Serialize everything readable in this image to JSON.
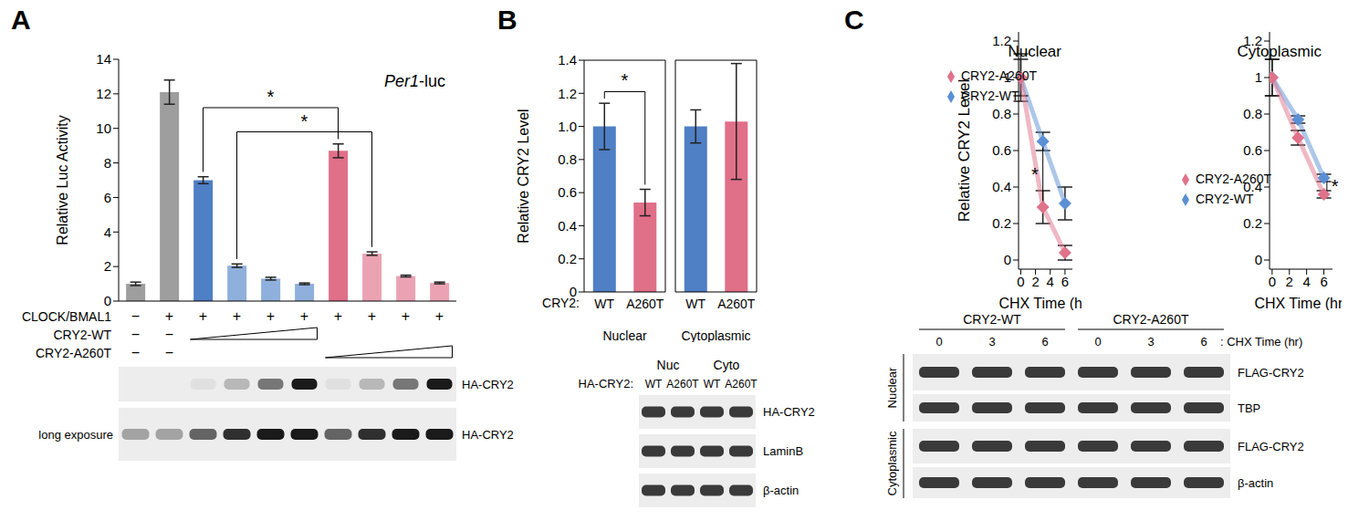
{
  "chart_data": [
    {
      "panel": "A",
      "type": "bar",
      "title": "Per1-luc",
      "ylabel": "Relative Luc Activity",
      "categories": [
        null,
        null,
        null,
        null,
        null,
        null,
        null,
        null,
        null,
        null
      ],
      "values": [
        1.0,
        12.1,
        7.0,
        2.05,
        1.3,
        1.0,
        8.7,
        2.75,
        1.45,
        1.05
      ],
      "errors": [
        0.1,
        0.7,
        0.2,
        0.1,
        0.08,
        0.05,
        0.4,
        0.1,
        0.05,
        0.05
      ],
      "colors": [
        "#9e9e9e",
        "#9e9e9e",
        "#4f7fc4",
        "#8fb0dc",
        "#8fb0dc",
        "#8fb0dc",
        "#e06f88",
        "#eba3b3",
        "#eba3b3",
        "#eba3b3"
      ],
      "ylim": [
        0,
        14
      ],
      "yticks": [
        0,
        2,
        4,
        6,
        8,
        10,
        12,
        14
      ],
      "significance": [
        {
          "from": 2,
          "to": 6,
          "label": "*"
        },
        {
          "from": 3,
          "to": 7,
          "label": "*"
        }
      ],
      "treatments": [
        {
          "label": "CLOCK/BMAL1",
          "signs": [
            "−",
            "+",
            "+",
            "+",
            "+",
            "+",
            "+",
            "+",
            "+",
            "+"
          ]
        },
        {
          "label": "CRY2-WT",
          "signs": [
            "−",
            "−"
          ],
          "ramp": [
            2,
            5
          ]
        },
        {
          "label": "CRY2-A260T",
          "signs": [
            "−",
            "−"
          ],
          "ramp": [
            6,
            9
          ]
        }
      ],
      "blots": [
        {
          "label": "HA-CRY2"
        },
        {
          "label": "HA-CRY2",
          "side_label": "long exposure"
        }
      ]
    },
    {
      "panel": "B",
      "type": "bar",
      "xlabel": "Nuclear",
      "ylabel": "Relative CRY2 Level",
      "category_label": "CRY2:",
      "categories": [
        "WT",
        "A260T"
      ],
      "values": [
        1.0,
        0.54
      ],
      "errors": [
        0.14,
        0.08
      ],
      "colors": [
        "#4f7fc4",
        "#e06f88"
      ],
      "ylim": [
        0,
        1.4
      ],
      "yticks": [
        0,
        0.2,
        0.4,
        0.6,
        0.8,
        {
          "value": 1,
          "label": "1.0"
        },
        1.2,
        1.4
      ],
      "significance": [
        {
          "from": 0,
          "to": 1,
          "label": "*"
        }
      ],
      "blot": {
        "groups": [
          "Nuc",
          "Cyto"
        ],
        "lane_prefix": "HA-CRY2:",
        "lanes": [
          "WT",
          "A260T",
          "WT",
          "A260T"
        ],
        "rows": [
          "HA-CRY2",
          "LaminB",
          "β-actin"
        ]
      }
    },
    {
      "type": "bar",
      "xlabel": "Cytoplasmic",
      "categories": [
        "WT",
        "A260T"
      ],
      "values": [
        1.0,
        1.03
      ],
      "errors": [
        0.1,
        0.35
      ],
      "colors": [
        "#4f7fc4",
        "#e06f88"
      ],
      "ylim": [
        0,
        1.4
      ],
      "yticks": [
        0,
        0.2,
        0.4,
        0.6,
        0.8,
        {
          "value": 1,
          "label": "1.0"
        },
        1.2,
        1.4
      ],
      "tick_labels": "x"
    },
    {
      "panel": "C",
      "type": "line",
      "title": "Nuclear",
      "xlabel": "CHX Time (hr)",
      "ylabel": "Relative CRY2 Level",
      "x": [
        0,
        3,
        6
      ],
      "series": [
        {
          "name": "CRY2-WT",
          "color": "#5b8fd4",
          "marker": "diamond",
          "values": [
            1.0,
            0.65,
            0.31
          ],
          "errors": [
            0.13,
            0.05,
            0.09
          ]
        },
        {
          "name": "CRY2-A260T",
          "color": "#e0728a",
          "marker": "diamond",
          "values": [
            1.0,
            0.29,
            0.04
          ],
          "errors": [
            0.1,
            0.09,
            0.04
          ]
        }
      ],
      "xlim": [
        -0.3,
        7
      ],
      "xticks": [
        0,
        2,
        4,
        6
      ],
      "ylim": [
        -0.05,
        1.25
      ],
      "yticks": [
        0,
        0.2,
        0.4,
        0.6,
        0.8,
        1,
        1.2
      ],
      "legend": "upper right",
      "significance": [
        {
          "x": 3,
          "label": "*"
        }
      ],
      "blot": {
        "groups": [
          "CRY2-WT",
          "CRY2-A260T"
        ],
        "lanes": [
          0,
          3,
          6,
          0,
          3,
          6
        ],
        "lane_suffix": ": CHX Time (hr)",
        "sections": [
          {
            "label": "Nuclear",
            "rows": [
              "FLAG-CRY2",
              "TBP"
            ]
          },
          {
            "label": "Cytoplasmic",
            "rows": [
              "FLAG-CRY2",
              "β-actin"
            ]
          }
        ]
      }
    },
    {
      "type": "line",
      "title": "Cytoplasmic",
      "xlabel": "CHX Time (hr)",
      "x": [
        0,
        3,
        6
      ],
      "series": [
        {
          "name": "CRY2-WT",
          "color": "#5b8fd4",
          "marker": "diamond",
          "values": [
            1.0,
            0.77,
            0.45
          ],
          "errors": [
            0.1,
            0.02,
            0.02
          ]
        },
        {
          "name": "CRY2-A260T",
          "color": "#e0728a",
          "marker": "diamond",
          "values": [
            1.0,
            0.67,
            0.36
          ],
          "errors": [
            0.1,
            0.04,
            0.02
          ]
        }
      ],
      "xlim": [
        -0.3,
        7
      ],
      "xticks": [
        0,
        2,
        4,
        6
      ],
      "ylim": [
        -0.05,
        1.25
      ],
      "yticks": [
        0,
        0.2,
        0.4,
        0.6,
        0.8,
        1,
        1.2
      ],
      "legend": "lower left",
      "significance": [
        {
          "x": 6,
          "label": "*"
        }
      ]
    }
  ]
}
